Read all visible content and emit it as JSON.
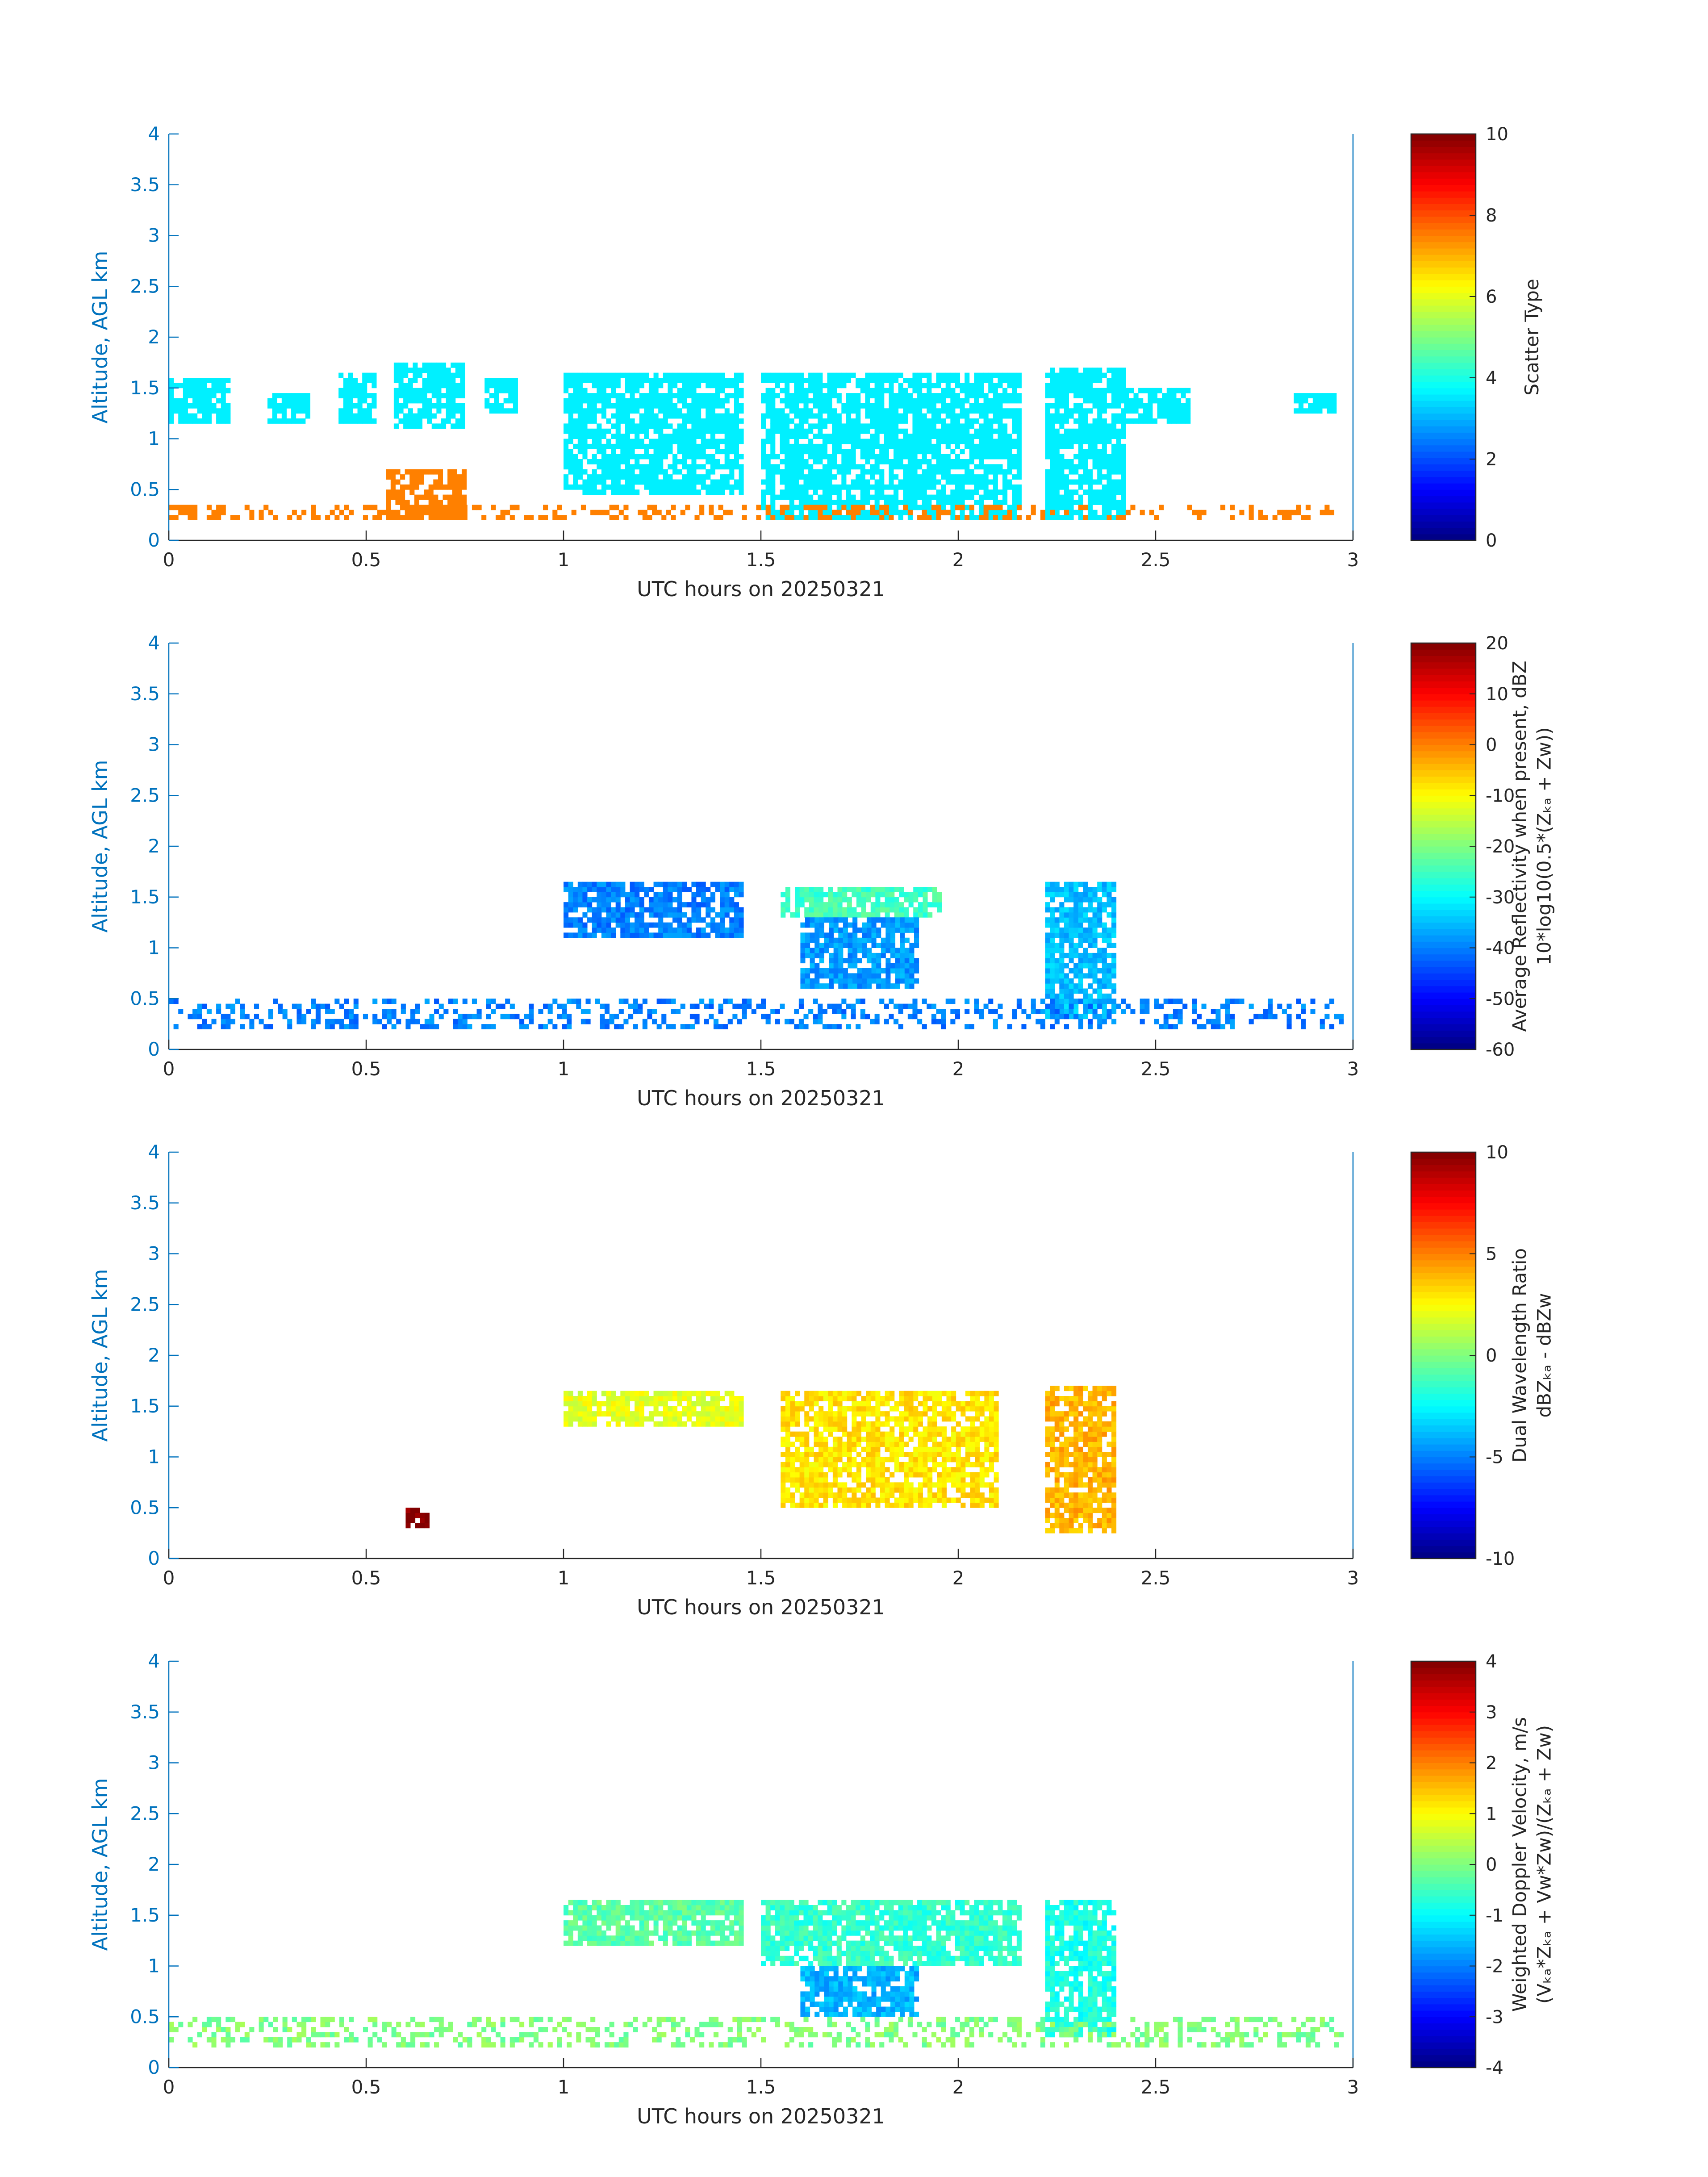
{
  "chart_data": [
    {
      "type": "heatmap",
      "panel": 1,
      "xlabel": "UTC hours on 20250321",
      "ylabel": "Altitude, AGL km",
      "xlim": [
        0,
        3
      ],
      "ylim": [
        0,
        4
      ],
      "xticks": [
        0,
        0.5,
        1,
        1.5,
        2,
        2.5,
        3
      ],
      "xtick_labels": [
        "0",
        "0.5",
        "1",
        "1.5",
        "2",
        "2.5",
        "3"
      ],
      "yticks": [
        0,
        0.5,
        1,
        1.5,
        2,
        2.5,
        3,
        3.5,
        4
      ],
      "ytick_labels": [
        "0",
        "0.5",
        "1",
        "1.5",
        "2",
        "2.5",
        "3",
        "3.5",
        "4"
      ],
      "colorbar": {
        "label_lines": [
          "Scatter Type"
        ],
        "clim": [
          0,
          10
        ],
        "ticks": [
          0,
          2,
          4,
          6,
          8,
          10
        ],
        "tick_labels": [
          "0",
          "2",
          "4",
          "6",
          "8",
          "10"
        ],
        "colormap": "jet"
      },
      "value_regions": [
        {
          "x": [
            0.0,
            0.15
          ],
          "y": [
            1.15,
            1.6
          ],
          "value": 3.6
        },
        {
          "x": [
            0.25,
            0.35
          ],
          "y": [
            1.15,
            1.45
          ],
          "value": 3.6
        },
        {
          "x": [
            0.43,
            0.52
          ],
          "y": [
            1.15,
            1.65
          ],
          "value": 3.6
        },
        {
          "x": [
            0.57,
            0.75
          ],
          "y": [
            1.1,
            1.75
          ],
          "value": 3.6
        },
        {
          "x": [
            0.8,
            0.88
          ],
          "y": [
            1.25,
            1.6
          ],
          "value": 3.6
        },
        {
          "x": [
            1.0,
            1.45
          ],
          "y": [
            0.45,
            1.65
          ],
          "value": 3.6
        },
        {
          "x": [
            1.5,
            2.15
          ],
          "y": [
            0.2,
            1.65
          ],
          "value": 3.6
        },
        {
          "x": [
            2.22,
            2.42
          ],
          "y": [
            0.2,
            1.7
          ],
          "value": 3.6
        },
        {
          "x": [
            2.42,
            2.58
          ],
          "y": [
            1.15,
            1.5
          ],
          "value": 3.6
        },
        {
          "x": [
            2.85,
            2.95
          ],
          "y": [
            1.25,
            1.45
          ],
          "value": 3.6
        },
        {
          "x": [
            0.0,
            2.97
          ],
          "y": [
            0.2,
            0.35
          ],
          "value": 7.5,
          "sparse": true
        },
        {
          "x": [
            0.55,
            0.75
          ],
          "y": [
            0.2,
            0.7
          ],
          "value": 7.5
        }
      ]
    },
    {
      "type": "heatmap",
      "panel": 2,
      "xlabel": "UTC hours on 20250321",
      "ylabel": "Altitude, AGL km",
      "xlim": [
        0,
        3
      ],
      "ylim": [
        0,
        4
      ],
      "xticks": [
        0,
        0.5,
        1,
        1.5,
        2,
        2.5,
        3
      ],
      "xtick_labels": [
        "0",
        "0.5",
        "1",
        "1.5",
        "2",
        "2.5",
        "3"
      ],
      "yticks": [
        0,
        0.5,
        1,
        1.5,
        2,
        2.5,
        3,
        3.5,
        4
      ],
      "ytick_labels": [
        "0",
        "0.5",
        "1",
        "1.5",
        "2",
        "2.5",
        "3",
        "3.5",
        "4"
      ],
      "colorbar": {
        "label_lines": [
          "Average Reflectivity when present, dBZ",
          "10*log10(0.5*(Zₖₐ + Zᴡ))"
        ],
        "clim": [
          -60,
          20
        ],
        "ticks": [
          -60,
          -50,
          -40,
          -30,
          -20,
          -10,
          0,
          10,
          20
        ],
        "tick_labels": [
          "-60",
          "-50",
          "-40",
          "-30",
          "-20",
          "-10",
          "0",
          "10",
          "20"
        ],
        "colormap": "jet"
      },
      "value_regions": [
        {
          "x": [
            1.55,
            1.95
          ],
          "y": [
            1.3,
            1.6
          ],
          "value": -25
        },
        {
          "x": [
            1.6,
            1.9
          ],
          "y": [
            0.6,
            1.3
          ],
          "value": -38
        },
        {
          "x": [
            1.0,
            1.45
          ],
          "y": [
            1.1,
            1.65
          ],
          "value": -40
        },
        {
          "x": [
            2.22,
            2.4
          ],
          "y": [
            0.3,
            1.65
          ],
          "value": -35
        },
        {
          "x": [
            0.0,
            2.97
          ],
          "y": [
            0.2,
            0.45
          ],
          "value": -40,
          "sparse": true
        }
      ]
    },
    {
      "type": "heatmap",
      "panel": 3,
      "xlabel": "UTC hours on 20250321",
      "ylabel": "Altitude, AGL km",
      "xlim": [
        0,
        3
      ],
      "ylim": [
        0,
        4
      ],
      "xticks": [
        0,
        0.5,
        1,
        1.5,
        2,
        2.5,
        3
      ],
      "xtick_labels": [
        "0",
        "0.5",
        "1",
        "1.5",
        "2",
        "2.5",
        "3"
      ],
      "yticks": [
        0,
        0.5,
        1,
        1.5,
        2,
        2.5,
        3,
        3.5,
        4
      ],
      "ytick_labels": [
        "0",
        "0.5",
        "1",
        "1.5",
        "2",
        "2.5",
        "3",
        "3.5",
        "4"
      ],
      "colorbar": {
        "label_lines": [
          "Dual Wavelength Ratio",
          "dBZₖₐ - dBZᴡ"
        ],
        "clim": [
          -10,
          10
        ],
        "ticks": [
          -10,
          -5,
          0,
          5,
          10
        ],
        "tick_labels": [
          "-10",
          "-5",
          "0",
          "5",
          "10"
        ],
        "colormap": "jet"
      },
      "value_regions": [
        {
          "x": [
            1.55,
            2.1
          ],
          "y": [
            0.5,
            1.65
          ],
          "value": 3
        },
        {
          "x": [
            1.0,
            1.45
          ],
          "y": [
            1.3,
            1.65
          ],
          "value": 2
        },
        {
          "x": [
            2.22,
            2.4
          ],
          "y": [
            0.25,
            1.7
          ],
          "value": 4
        },
        {
          "x": [
            0.6,
            0.65
          ],
          "y": [
            0.3,
            0.45
          ],
          "value": 10
        }
      ]
    },
    {
      "type": "heatmap",
      "panel": 4,
      "xlabel": "UTC hours on 20250321",
      "ylabel": "Altitude, AGL km",
      "xlim": [
        0,
        3
      ],
      "ylim": [
        0,
        4
      ],
      "xticks": [
        0,
        0.5,
        1,
        1.5,
        2,
        2.5,
        3
      ],
      "xtick_labels": [
        "0",
        "0.5",
        "1",
        "1.5",
        "2",
        "2.5",
        "3"
      ],
      "yticks": [
        0,
        0.5,
        1,
        1.5,
        2,
        2.5,
        3,
        3.5,
        4
      ],
      "ytick_labels": [
        "0",
        "0.5",
        "1",
        "1.5",
        "2",
        "2.5",
        "3",
        "3.5",
        "4"
      ],
      "colorbar": {
        "label_lines": [
          "Weighted Doppler Velocity, m/s",
          "(Vₖₐ*Zₖₐ + Vᴡ*Zᴡ)/(Zₖₐ + Zᴡ)"
        ],
        "clim": [
          -4,
          4
        ],
        "ticks": [
          -4,
          -3,
          -2,
          -1,
          0,
          1,
          2,
          3,
          4
        ],
        "tick_labels": [
          "-4",
          "-3",
          "-2",
          "-1",
          "0",
          "1",
          "2",
          "3",
          "4"
        ],
        "colormap": "jet"
      },
      "value_regions": [
        {
          "x": [
            1.0,
            1.45
          ],
          "y": [
            1.2,
            1.65
          ],
          "value": -0.3
        },
        {
          "x": [
            1.5,
            2.15
          ],
          "y": [
            1.0,
            1.65
          ],
          "value": -0.6
        },
        {
          "x": [
            1.6,
            1.9
          ],
          "y": [
            0.5,
            1.0
          ],
          "value": -1.6
        },
        {
          "x": [
            2.22,
            2.4
          ],
          "y": [
            0.3,
            1.65
          ],
          "value": -0.8
        },
        {
          "x": [
            0.0,
            2.97
          ],
          "y": [
            0.2,
            0.45
          ],
          "value": 0,
          "sparse": true
        }
      ]
    }
  ]
}
